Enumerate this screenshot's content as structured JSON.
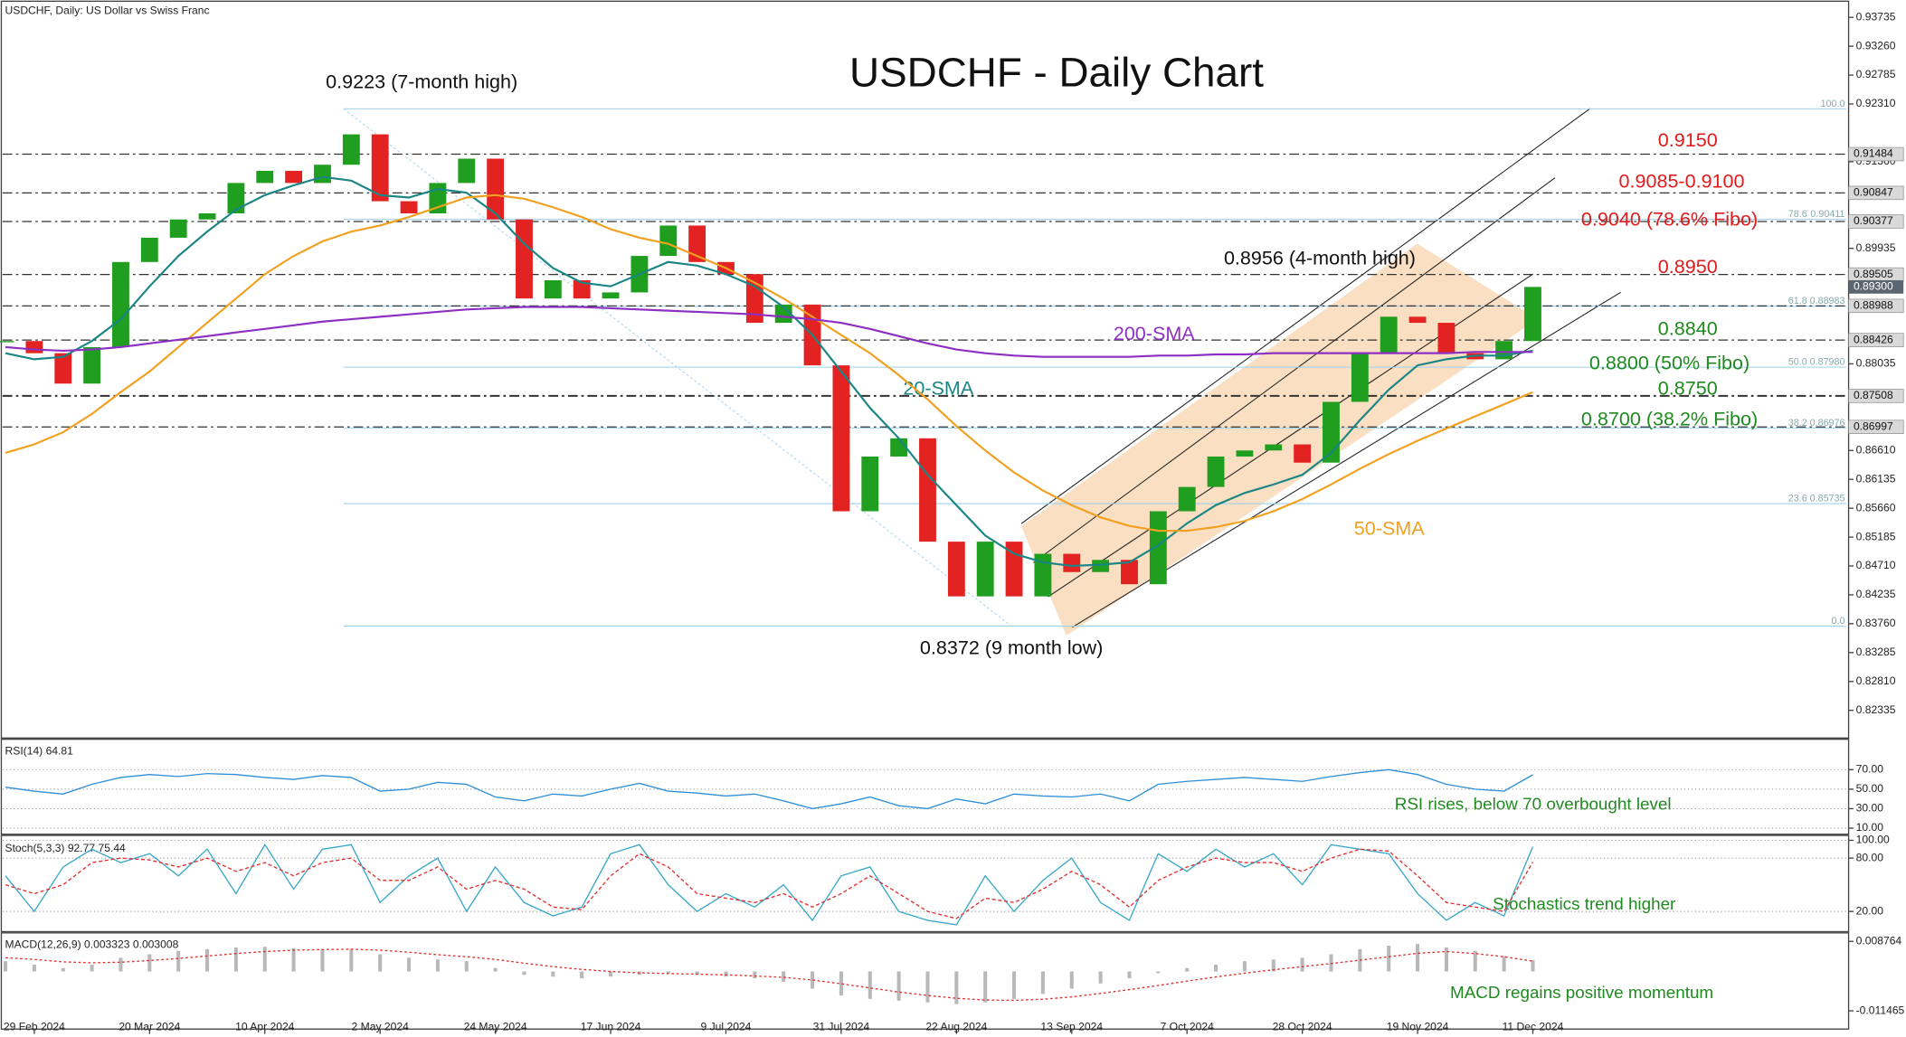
{
  "header": "USDCHF, Daily:  US Dollar vs Swiss Franc",
  "chart_data": [
    {
      "type": "candlestick",
      "title": "USDCHF - Daily Chart",
      "categories": [
        null,
        "29 Feb 2024",
        null,
        null,
        null,
        "20 Mar 2024",
        null,
        null,
        null,
        "10 Apr 2024",
        null,
        null,
        null,
        "2 May 2024",
        null,
        null,
        null,
        "24 May 2024",
        null,
        null,
        null,
        "17 Jun 2024",
        null,
        null,
        null,
        "9 Jul 2024",
        null,
        null,
        null,
        "31 Jul 2024",
        null,
        null,
        null,
        "22 Aug 2024",
        null,
        null,
        null,
        "13 Sep 2024",
        null,
        null,
        null,
        "7 Oct 2024",
        null,
        null,
        null,
        "28 Oct 2024",
        null,
        null,
        null,
        "19 Nov 2024",
        null,
        null,
        null,
        "11 Dec 2024"
      ],
      "close": [
        0.8841,
        0.8821,
        0.8771,
        0.8831,
        0.8971,
        0.9011,
        0.9041,
        0.9051,
        0.9101,
        0.9121,
        0.9101,
        0.9131,
        0.9181,
        0.9071,
        0.9051,
        0.9101,
        0.9141,
        0.9041,
        0.8911,
        0.8941,
        0.8911,
        0.8921,
        0.8981,
        0.9031,
        0.8971,
        0.8951,
        0.8871,
        0.8901,
        0.8801,
        0.8561,
        0.8651,
        0.8681,
        0.8511,
        0.8421,
        0.8511,
        0.8421,
        0.8491,
        0.8461,
        0.8481,
        0.8441,
        0.8561,
        0.8601,
        0.8651,
        0.8661,
        0.8671,
        0.8641,
        0.8741,
        0.8821,
        0.8881,
        0.8871,
        0.8821,
        0.8811,
        0.8841,
        0.893
      ],
      "up_color": "#1f9e1f",
      "down_color": "#e32222",
      "series": [
        {
          "name": "20-SMA",
          "color": "#1a8585",
          "values": [
            0.8821,
            0.8811,
            0.8815,
            0.8841,
            0.8877,
            0.8931,
            0.8981,
            0.9021,
            0.9057,
            0.9081,
            0.9097,
            0.9111,
            0.9105,
            0.9081,
            0.9077,
            0.9091,
            0.9085,
            0.9051,
            0.9001,
            0.8961,
            0.8937,
            0.8931,
            0.8951,
            0.8971,
            0.8965,
            0.8951,
            0.8931,
            0.8897,
            0.8851,
            0.8791,
            0.8731,
            0.8681,
            0.8621,
            0.8571,
            0.8521,
            0.8491,
            0.8477,
            0.8471,
            0.8473,
            0.8477,
            0.8505,
            0.8541,
            0.8571,
            0.8591,
            0.8605,
            0.8621,
            0.8657,
            0.8711,
            0.8761,
            0.8801,
            0.8811,
            0.8817,
            0.8817,
            0.8825
          ]
        },
        {
          "name": "50-SMA",
          "color": "#f2a020",
          "values": [
            0.8657,
            0.8671,
            0.8691,
            0.8721,
            0.8757,
            0.8791,
            0.8831,
            0.8871,
            0.8911,
            0.8951,
            0.8981,
            0.9005,
            0.9021,
            0.9031,
            0.9045,
            0.9061,
            0.9077,
            0.9081,
            0.9075,
            0.9061,
            0.9045,
            0.9025,
            0.9011,
            0.9001,
            0.8981,
            0.8961,
            0.8937,
            0.8911,
            0.8881,
            0.8851,
            0.8821,
            0.8785,
            0.8745,
            0.8701,
            0.8661,
            0.8625,
            0.8595,
            0.8571,
            0.8551,
            0.8537,
            0.8529,
            0.8529,
            0.8535,
            0.8545,
            0.8561,
            0.8581,
            0.8605,
            0.8631,
            0.8655,
            0.8677,
            0.8697,
            0.8717,
            0.8737,
            0.8757
          ]
        },
        {
          "name": "200-SMA",
          "color": "#8e2fc4",
          "values": [
            0.8831,
            0.8827,
            0.8825,
            0.8827,
            0.8831,
            0.8837,
            0.8843,
            0.8849,
            0.8855,
            0.8861,
            0.8867,
            0.8873,
            0.8877,
            0.8881,
            0.8885,
            0.8889,
            0.8893,
            0.8895,
            0.8897,
            0.8897,
            0.8897,
            0.8895,
            0.8893,
            0.8891,
            0.8889,
            0.8887,
            0.8885,
            0.8881,
            0.8877,
            0.8871,
            0.8861,
            0.8849,
            0.8837,
            0.8827,
            0.8821,
            0.8817,
            0.8815,
            0.8815,
            0.8815,
            0.8815,
            0.8817,
            0.8817,
            0.8819,
            0.8819,
            0.8821,
            0.8821,
            0.8821,
            0.8821,
            0.8821,
            0.8821,
            0.8821,
            0.8823,
            0.8823,
            0.8823
          ]
        }
      ],
      "ylim": [
        0.819,
        0.9402
      ],
      "yticks": [
        0.93735,
        {
          "value": 0.9326,
          "label": "0.93260"
        },
        0.92785,
        {
          "value": 0.9231,
          "label": "0.92310"
        },
        {
          "value": 0.9136,
          "label": "0.91360"
        },
        0.89935,
        0.88035,
        {
          "value": 0.8661,
          "label": "0.86610"
        },
        0.86135,
        {
          "value": 0.8566,
          "label": "0.85660"
        },
        0.85185,
        {
          "value": 0.8471,
          "label": "0.84710"
        },
        0.84235,
        {
          "value": 0.8376,
          "label": "0.83760"
        },
        0.83285,
        {
          "value": 0.8281,
          "label": "0.82810"
        },
        0.82335
      ],
      "levels": [
        0.91484,
        0.90847,
        0.90377,
        0.89505,
        0.88988,
        0.88426,
        0.87508,
        0.86997
      ],
      "last_price": {
        "value": 0.893,
        "label": "0.89300"
      },
      "fibo": [
        {
          "ratio": "100.0",
          "level": 0.9223
        },
        {
          "ratio": "78.6",
          "price": 0.90411
        },
        {
          "ratio": "61.8",
          "price": 0.88983
        },
        {
          "ratio": "50.0",
          "price": {
            "value": 0.8798,
            "label": "0.87980"
          }
        },
        {
          "ratio": "38.2",
          "price": 0.86976
        },
        {
          "ratio": "23.6",
          "price": 0.85735
        },
        {
          "ratio": "0.0",
          "level": 0.8372
        }
      ],
      "high_label": "0.9223 (7-month high)",
      "recent_high_label": "0.8956 (4-month high)",
      "low_label": "0.8372 (9 month low)",
      "resistance": [
        "0.9150",
        "0.9085-0.9100",
        "0.9040 (78.6% Fibo)",
        "0.8950"
      ],
      "support": [
        "0.8840",
        "0.8800 (50% Fibo)",
        "0.8750",
        "0.8700 (38.2% Fibo)"
      ]
    },
    {
      "type": "line",
      "title": "RSI(14) 64.81",
      "note": "RSI rises, below 70 overbought level",
      "series": [
        {
          "color": "#2f8fd8",
          "values": [
            52,
            48,
            45,
            55,
            62,
            65,
            63,
            66,
            65,
            62,
            60,
            64,
            62,
            48,
            50,
            57,
            55,
            42,
            38,
            45,
            43,
            50,
            56,
            48,
            46,
            43,
            45,
            38,
            30,
            35,
            42,
            33,
            30,
            40,
            35,
            45,
            43,
            42,
            45,
            38,
            55,
            58,
            60,
            62,
            60,
            58,
            63,
            67,
            70,
            65,
            55,
            50,
            48,
            64.81
          ]
        }
      ],
      "ylim": [
        5,
        100
      ],
      "yticks": [
        {
          "value": 70,
          "label": "70.00"
        },
        {
          "value": 50,
          "label": "50.00"
        },
        {
          "value": 30,
          "label": "30.00"
        },
        {
          "value": 10,
          "label": "10.00"
        }
      ]
    },
    {
      "type": "line",
      "title": "Stoch(5,3,3) 92.77 75.44",
      "note": "Stochastics trend higher",
      "series": [
        {
          "color": "#3aa8c8",
          "values": [
            60,
            20,
            70,
            90,
            75,
            85,
            60,
            90,
            40,
            95,
            45,
            90,
            95,
            30,
            60,
            80,
            20,
            70,
            30,
            15,
            25,
            85,
            95,
            50,
            20,
            40,
            25,
            50,
            10,
            60,
            70,
            20,
            10,
            5,
            60,
            20,
            55,
            80,
            30,
            10,
            85,
            65,
            90,
            70,
            85,
            50,
            95,
            90,
            85,
            40,
            10,
            30,
            15,
            92.77
          ]
        },
        {
          "color": "#e03030",
          "dashed": true,
          "values": [
            50,
            40,
            50,
            75,
            80,
            78,
            70,
            80,
            65,
            75,
            60,
            75,
            80,
            55,
            55,
            70,
            45,
            55,
            45,
            25,
            22,
            60,
            85,
            70,
            40,
            35,
            30,
            40,
            25,
            40,
            60,
            40,
            20,
            12,
            35,
            30,
            45,
            65,
            50,
            25,
            55,
            70,
            80,
            75,
            75,
            65,
            80,
            90,
            88,
            60,
            30,
            25,
            20,
            75.44
          ]
        }
      ],
      "ylim": [
        0,
        100
      ],
      "yticks": [
        {
          "value": 100,
          "label": "100.00"
        },
        {
          "value": 80,
          "label": "80.00"
        },
        {
          "value": 20,
          "label": "20.00"
        }
      ]
    },
    {
      "type": "macd",
      "title": "MACD(12,26,9) 0.003323 0.003008",
      "note": "MACD regains positive momentum",
      "histogram": [
        0.003,
        0.002,
        0.001,
        0.002,
        0.004,
        0.005,
        0.006,
        0.0065,
        0.007,
        0.0072,
        0.0068,
        0.0065,
        0.0066,
        0.005,
        0.004,
        0.0035,
        0.003,
        0.001,
        -0.001,
        -0.0015,
        -0.002,
        -0.0015,
        -0.001,
        -0.0005,
        -0.001,
        -0.0015,
        -0.002,
        -0.003,
        -0.005,
        -0.007,
        -0.008,
        -0.0085,
        -0.009,
        -0.0095,
        -0.009,
        -0.008,
        -0.0065,
        -0.005,
        -0.0035,
        -0.002,
        -0.0005,
        0.001,
        0.002,
        0.003,
        0.0035,
        0.004,
        0.005,
        0.0065,
        0.0075,
        0.008,
        0.007,
        0.006,
        0.0045,
        0.003323
      ],
      "signal": [
        0.004,
        0.0035,
        0.0028,
        0.0025,
        0.0027,
        0.0032,
        0.0038,
        0.0045,
        0.0052,
        0.0058,
        0.0062,
        0.0064,
        0.0065,
        0.0062,
        0.0056,
        0.0049,
        0.0043,
        0.0035,
        0.0024,
        0.0014,
        0.0006,
        0,
        -0.0004,
        -0.0006,
        -0.0008,
        -0.001,
        -0.0013,
        -0.0017,
        -0.0025,
        -0.0036,
        -0.0048,
        -0.006,
        -0.007,
        -0.0078,
        -0.0083,
        -0.0084,
        -0.0081,
        -0.0074,
        -0.0064,
        -0.0053,
        -0.0041,
        -0.0028,
        -0.0016,
        -0.0005,
        0.0005,
        0.0014,
        0.0023,
        0.0033,
        0.0043,
        0.0053,
        0.0058,
        0.0052,
        0.0043,
        0.003008
      ],
      "histogram_color": "#b8b8b8",
      "signal_color": "#e03030",
      "ylim": [
        -0.01572,
        0.01089
      ],
      "yticks": [
        0.008764,
        -0.011465
      ]
    }
  ]
}
